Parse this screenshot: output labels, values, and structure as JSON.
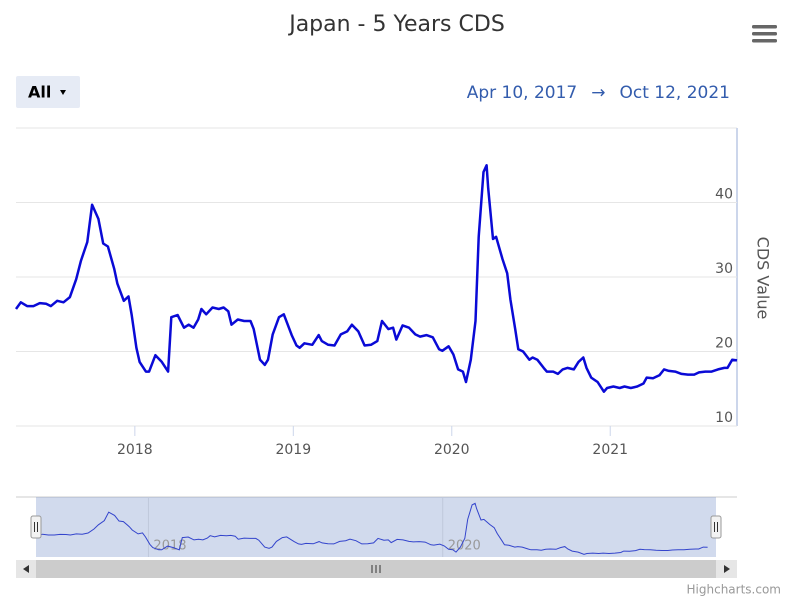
{
  "chart_data": {
    "type": "line",
    "title": "Japan - 5 Years CDS",
    "range_button": "All",
    "date_from": "Apr 10, 2017",
    "date_arrow": "→",
    "date_to": "Oct 12, 2021",
    "y_label": "CDS Value",
    "credit": "Highcharts.com",
    "color": "#0a0ad6",
    "xlim": [
      2017.25,
      2021.8
    ],
    "ylim": [
      10,
      50
    ],
    "xticks": [
      2018,
      2019,
      2020,
      2021
    ],
    "yticks": [
      10,
      20,
      30,
      40
    ],
    "grid": true,
    "x": [
      2017.25,
      2017.28,
      2017.32,
      2017.36,
      2017.4,
      2017.44,
      2017.47,
      2017.51,
      2017.55,
      2017.59,
      2017.63,
      2017.66,
      2017.7,
      2017.73,
      2017.77,
      2017.8,
      2017.83,
      2017.87,
      2017.89,
      2017.93,
      2017.96,
      2017.98,
      2018.01,
      2018.03,
      2018.07,
      2018.09,
      2018.13,
      2018.17,
      2018.21,
      2018.23,
      2018.27,
      2018.31,
      2018.34,
      2018.37,
      2018.4,
      2018.42,
      2018.45,
      2018.49,
      2018.53,
      2018.56,
      2018.59,
      2018.61,
      2018.65,
      2018.69,
      2018.73,
      2018.75,
      2018.79,
      2018.82,
      2018.84,
      2018.87,
      2018.91,
      2018.94,
      2018.99,
      2019.02,
      2019.04,
      2019.07,
      2019.12,
      2019.16,
      2019.18,
      2019.22,
      2019.26,
      2019.3,
      2019.34,
      2019.37,
      2019.41,
      2019.45,
      2019.49,
      2019.53,
      2019.56,
      2019.6,
      2019.63,
      2019.65,
      2019.69,
      2019.73,
      2019.77,
      2019.8,
      2019.84,
      2019.88,
      2019.92,
      2019.94,
      2019.98,
      2020.01,
      2020.04,
      2020.07,
      2020.09,
      2020.12,
      2020.15,
      2020.17,
      2020.2,
      2020.22,
      2020.23,
      2020.26,
      2020.28,
      2020.32,
      2020.35,
      2020.37,
      2020.4,
      2020.42,
      2020.45,
      2020.49,
      2020.51,
      2020.54,
      2020.58,
      2020.6,
      2020.64,
      2020.67,
      2020.7,
      2020.73,
      2020.77,
      2020.8,
      2020.83,
      2020.85,
      2020.88,
      2020.92,
      2020.96,
      2020.98,
      2021.02,
      2021.06,
      2021.09,
      2021.13,
      2021.17,
      2021.21,
      2021.23,
      2021.27,
      2021.31,
      2021.34,
      2021.37,
      2021.41,
      2021.45,
      2021.49,
      2021.53,
      2021.56,
      2021.6,
      2021.64,
      2021.68,
      2021.72,
      2021.74,
      2021.77,
      2021.8
    ],
    "values": [
      25.7,
      26.6,
      26.1,
      26.1,
      26.5,
      26.4,
      26.1,
      26.8,
      26.6,
      27.3,
      29.7,
      32.2,
      34.7,
      39.7,
      37.8,
      34.5,
      34.1,
      31.1,
      29.1,
      26.8,
      27.4,
      24.9,
      20.5,
      18.6,
      17.3,
      17.3,
      19.5,
      18.6,
      17.3,
      24.6,
      24.9,
      23.2,
      23.6,
      23.2,
      24.3,
      25.7,
      25.0,
      25.9,
      25.7,
      25.9,
      25.4,
      23.6,
      24.3,
      24.1,
      24.1,
      23.0,
      18.9,
      18.2,
      18.9,
      22.3,
      24.6,
      25.0,
      22.2,
      20.8,
      20.5,
      21.1,
      20.9,
      22.2,
      21.4,
      20.9,
      20.8,
      22.3,
      22.7,
      23.6,
      22.7,
      20.8,
      20.9,
      21.4,
      24.1,
      23.0,
      23.2,
      21.6,
      23.5,
      23.2,
      22.3,
      22.0,
      22.2,
      21.9,
      20.3,
      20.1,
      20.7,
      19.6,
      17.6,
      17.3,
      15.9,
      18.9,
      24.1,
      35.4,
      44.1,
      45.0,
      41.9,
      35.1,
      35.4,
      32.4,
      30.5,
      27.0,
      23.0,
      20.3,
      20.0,
      18.9,
      19.2,
      18.9,
      17.8,
      17.3,
      17.3,
      17.0,
      17.6,
      17.8,
      17.6,
      18.6,
      19.2,
      17.8,
      16.5,
      15.9,
      14.6,
      15.1,
      15.3,
      15.1,
      15.3,
      15.1,
      15.3,
      15.7,
      16.5,
      16.4,
      16.8,
      17.6,
      17.4,
      17.3,
      17.0,
      16.9,
      16.9,
      17.2,
      17.3,
      17.3,
      17.6,
      17.8,
      17.8,
      18.9,
      18.8
    ],
    "navigator": {
      "xlim": [
        2017.1,
        2022.0
      ],
      "ylim": [
        13,
        47
      ],
      "xticks": [
        2018,
        2020
      ]
    }
  }
}
